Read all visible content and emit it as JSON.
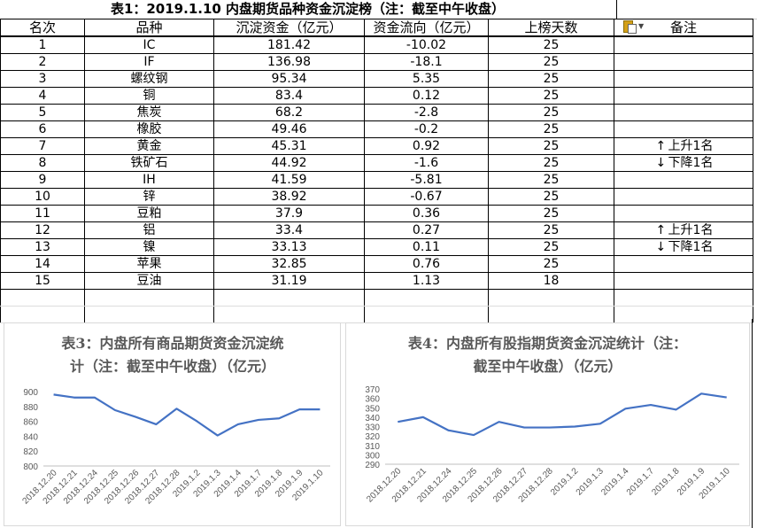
{
  "sheet": {
    "title": "表1：2019.1.10 内盘期货品种资金沉淀榜（注：截至中午收盘）",
    "headers": [
      "名次",
      "品种",
      "沉淀资金（亿元）",
      "资金流向（亿元）",
      "上榜天数",
      "备注"
    ],
    "rows": [
      {
        "rank": "1",
        "name": "IC",
        "capital": "181.42",
        "flow": "-10.02",
        "days": "25",
        "note": "",
        "arrow": ""
      },
      {
        "rank": "2",
        "name": "IF",
        "capital": "136.98",
        "flow": "-18.1",
        "days": "25",
        "note": "",
        "arrow": ""
      },
      {
        "rank": "3",
        "name": "螺纹钢",
        "capital": "95.34",
        "flow": "5.35",
        "days": "25",
        "note": "",
        "arrow": ""
      },
      {
        "rank": "4",
        "name": "铜",
        "capital": "83.4",
        "flow": "0.12",
        "days": "25",
        "note": "",
        "arrow": ""
      },
      {
        "rank": "5",
        "name": "焦炭",
        "capital": "68.2",
        "flow": "-2.8",
        "days": "25",
        "note": "",
        "arrow": ""
      },
      {
        "rank": "6",
        "name": "橡胶",
        "capital": "49.46",
        "flow": "-0.2",
        "days": "25",
        "note": "",
        "arrow": ""
      },
      {
        "rank": "7",
        "name": "黄金",
        "capital": "45.31",
        "flow": "0.92",
        "days": "25",
        "note": "上升1名",
        "arrow": "up"
      },
      {
        "rank": "8",
        "name": "铁矿石",
        "capital": "44.92",
        "flow": "-1.6",
        "days": "25",
        "note": "下降1名",
        "arrow": "down"
      },
      {
        "rank": "9",
        "name": "IH",
        "capital": "41.59",
        "flow": "-5.81",
        "days": "25",
        "note": "",
        "arrow": ""
      },
      {
        "rank": "10",
        "name": "锌",
        "capital": "38.92",
        "flow": "-0.67",
        "days": "25",
        "note": "",
        "arrow": ""
      },
      {
        "rank": "11",
        "name": "豆粕",
        "capital": "37.9",
        "flow": "0.36",
        "days": "25",
        "note": "",
        "arrow": ""
      },
      {
        "rank": "12",
        "name": "铝",
        "capital": "33.4",
        "flow": "0.27",
        "days": "25",
        "note": "上升1名",
        "arrow": "up"
      },
      {
        "rank": "13",
        "name": "镍",
        "capital": "33.13",
        "flow": "0.11",
        "days": "25",
        "note": "下降1名",
        "arrow": "down"
      },
      {
        "rank": "14",
        "name": "苹果",
        "capital": "32.85",
        "flow": "0.76",
        "days": "25",
        "note": "",
        "arrow": ""
      },
      {
        "rank": "15",
        "name": "豆油",
        "capital": "31.19",
        "flow": "1.13",
        "days": "18",
        "note": "",
        "arrow": ""
      }
    ],
    "icons": {
      "paste": "paste-icon",
      "up": "arrow-up-icon",
      "down": "arrow-down-icon"
    }
  },
  "chart_data": [
    {
      "type": "line",
      "title": "表3：内盘所有商品期货资金沉淀统计（注：截至中午收盘）（亿元）",
      "title_lines": [
        "表3：内盘所有商品期货资金沉淀统",
        "计（注：截至中午收盘）（亿元）"
      ],
      "categories": [
        "2018.12.20",
        "2018.12.21",
        "2018.12.24",
        "2018.12.25",
        "2018.12.26",
        "2018.12.27",
        "2018.12.28",
        "2019.1.2",
        "2019.1.3",
        "2019.1.4",
        "2019.1.7",
        "2019.1.8",
        "2019.1.9",
        "2019.1.10"
      ],
      "values": [
        896,
        892,
        892,
        875,
        866,
        856,
        877,
        860,
        841,
        856,
        862,
        864,
        876,
        876
      ],
      "ylim": [
        800,
        900
      ],
      "yticks": [
        "800",
        "820",
        "840",
        "860",
        "880",
        "900"
      ],
      "color": "#4472c4",
      "grid": false,
      "legend": "none"
    },
    {
      "type": "line",
      "title": "表4：内盘所有股指期货资金沉淀统计（注：截至中午收盘）（亿元）",
      "title_lines": [
        "表4：内盘所有股指期货资金沉淀统计（注：",
        "截至中午收盘）（亿元）"
      ],
      "categories": [
        "2018.12.20",
        "2018.12.21",
        "2018.12.24",
        "2018.12.25",
        "2018.12.26",
        "2018.12.27",
        "2018.12.28",
        "2019.1.2",
        "2019.1.3",
        "2019.1.4",
        "2019.1.7",
        "2019.1.8",
        "2019.1.9",
        "2019.1.10"
      ],
      "values": [
        335,
        340,
        326,
        321,
        335,
        329,
        329,
        330,
        333,
        349,
        353,
        348,
        365,
        361
      ],
      "ylim": [
        290,
        370
      ],
      "yticks": [
        "290",
        "300",
        "310",
        "320",
        "330",
        "340",
        "350",
        "360",
        "370"
      ],
      "color": "#4472c4",
      "grid": false,
      "legend": "none"
    }
  ]
}
